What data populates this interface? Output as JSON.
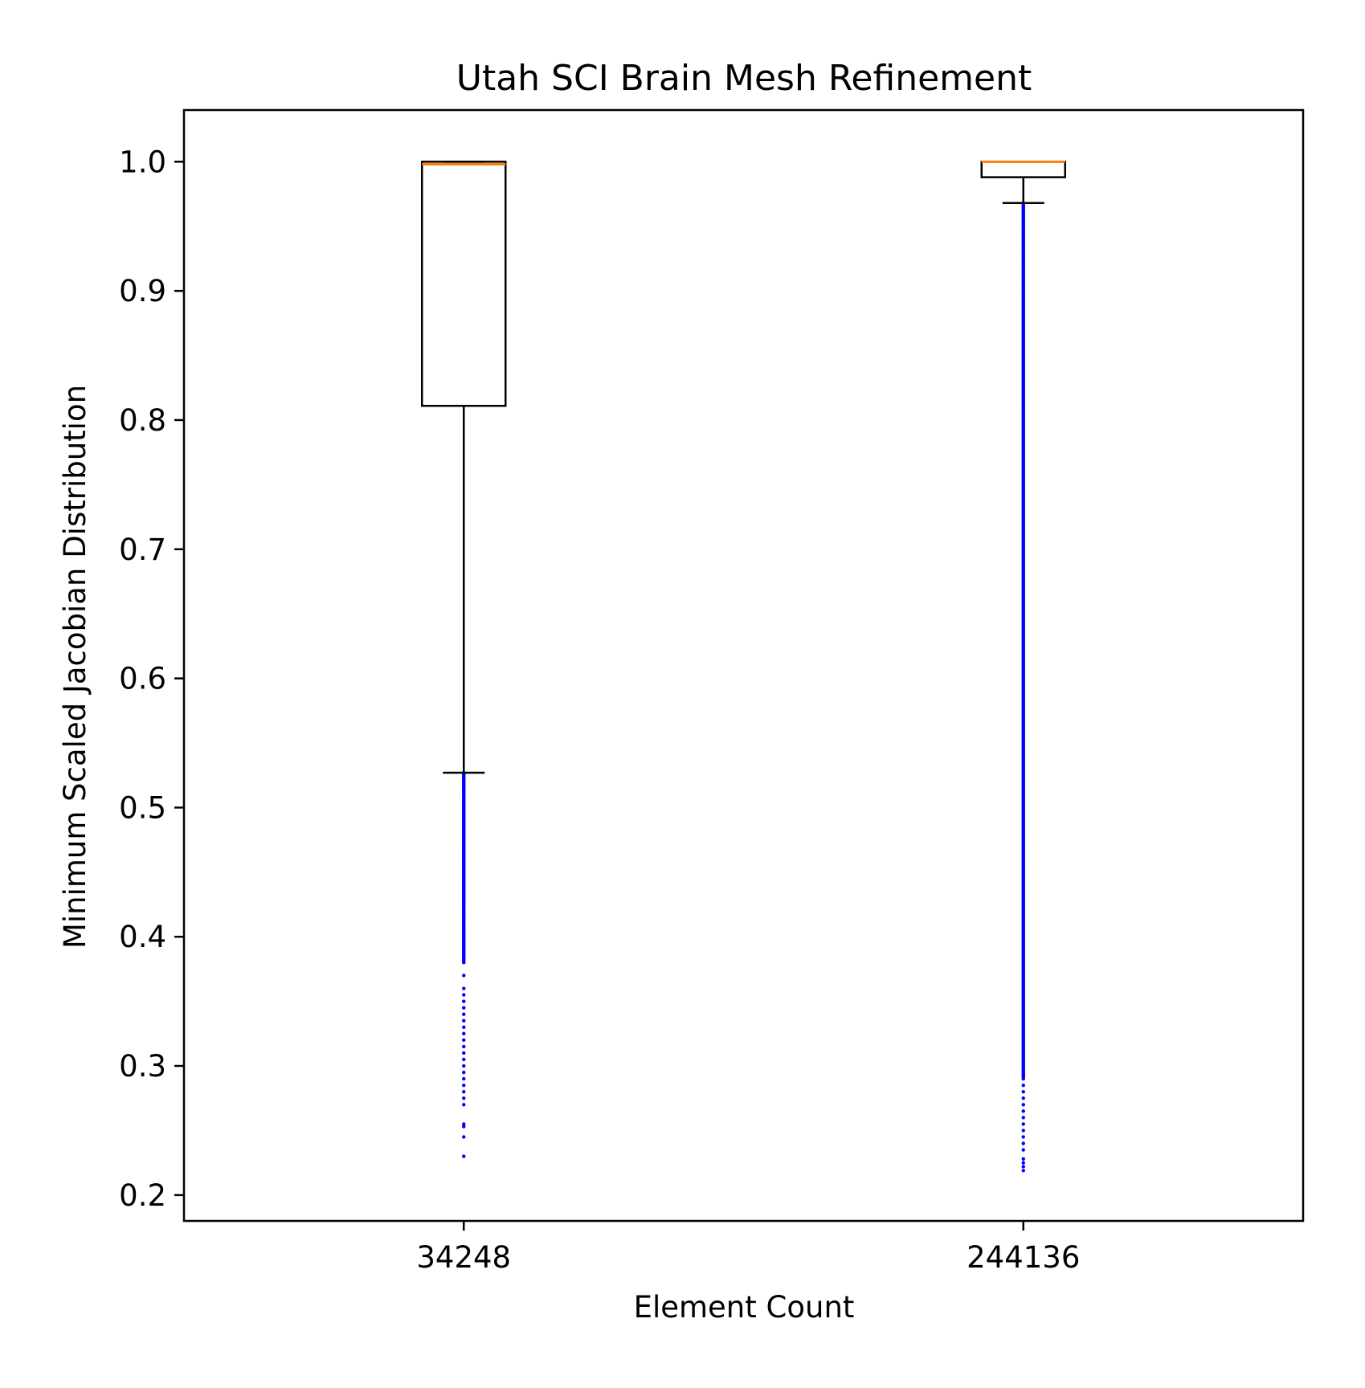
{
  "chart_data": {
    "type": "box",
    "title": "Utah SCI Brain Mesh Refinement",
    "xlabel": "Element Count",
    "ylabel": "Minimum Scaled Jacobian Distribution",
    "ylim": [
      0.18,
      1.04
    ],
    "yticks": [
      0.2,
      0.3,
      0.4,
      0.5,
      0.6,
      0.7,
      0.8,
      0.9,
      1.0
    ],
    "ytick_labels": [
      "0.2",
      "0.3",
      "0.4",
      "0.5",
      "0.6",
      "0.7",
      "0.8",
      "0.9",
      "1.0"
    ],
    "categories": [
      "34248",
      "244136"
    ],
    "grid": false,
    "colors": {
      "box": "#000000",
      "median": "#ff7f0e",
      "outliers": "#0000ff"
    },
    "boxes": [
      {
        "label": "34248",
        "whisker_low": 0.527,
        "q1": 0.811,
        "median": 0.998,
        "q3": 1.0,
        "whisker_high": 1.0,
        "outliers_dense_range": [
          0.38,
          0.527
        ],
        "outliers_sparse": [
          0.37,
          0.36,
          0.355,
          0.35,
          0.345,
          0.34,
          0.335,
          0.33,
          0.325,
          0.32,
          0.315,
          0.31,
          0.305,
          0.3,
          0.295,
          0.29,
          0.285,
          0.28,
          0.275,
          0.27,
          0.255,
          0.253,
          0.245,
          0.23
        ]
      },
      {
        "label": "244136",
        "whisker_low": 0.968,
        "q1": 0.988,
        "median": 1.0,
        "q3": 1.0,
        "whisker_high": 1.0,
        "outliers_dense_range": [
          0.29,
          0.968
        ],
        "outliers_sparse": [
          0.285,
          0.28,
          0.275,
          0.27,
          0.265,
          0.26,
          0.255,
          0.25,
          0.245,
          0.24,
          0.235,
          0.228,
          0.225,
          0.222,
          0.219
        ]
      }
    ]
  }
}
